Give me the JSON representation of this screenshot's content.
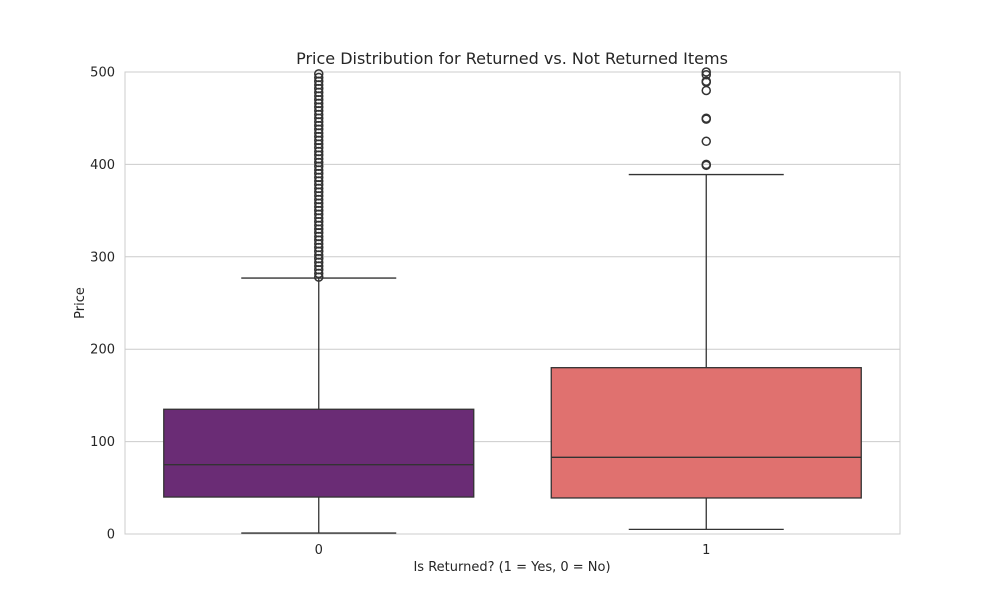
{
  "chart_data": {
    "type": "box",
    "title": "Price Distribution for Returned vs. Not Returned Items",
    "xlabel": "Is Returned? (1 = Yes, 0 = No)",
    "ylabel": "Price",
    "ylim": [
      0,
      500
    ],
    "yticks": [
      0,
      100,
      200,
      300,
      400,
      500
    ],
    "grid": true,
    "categories": [
      "0",
      "1"
    ],
    "boxes": [
      {
        "category": "0",
        "whisker_low": 1,
        "q1": 40,
        "median": 75,
        "q3": 135,
        "whisker_high": 277,
        "color": "#6a2c75",
        "outliers": [
          278,
          282,
          286,
          290,
          294,
          298,
          302,
          306,
          310,
          314,
          318,
          322,
          326,
          330,
          334,
          338,
          342,
          346,
          350,
          354,
          358,
          362,
          366,
          370,
          374,
          378,
          382,
          386,
          390,
          394,
          398,
          402,
          406,
          410,
          414,
          418,
          422,
          426,
          430,
          434,
          438,
          442,
          446,
          450,
          454,
          458,
          462,
          466,
          470,
          474,
          478,
          482,
          486,
          490,
          494,
          498
        ]
      },
      {
        "category": "1",
        "whisker_low": 5,
        "q1": 39,
        "median": 83,
        "q3": 180,
        "whisker_high": 389,
        "color": "#e0716f",
        "outliers": [
          399,
          400,
          425,
          449,
          450,
          480,
          489,
          490,
          497,
          500
        ]
      }
    ]
  }
}
